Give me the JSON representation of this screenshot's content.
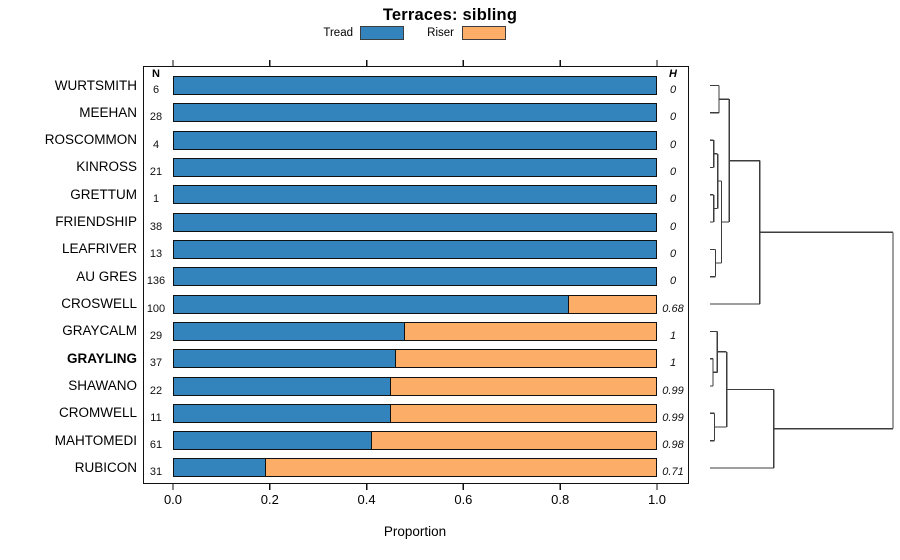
{
  "title": "Terraces: sibling",
  "legend": {
    "items": [
      {
        "label": "Tread",
        "color": "#3384BC"
      },
      {
        "label": "Riser",
        "color": "#FCAE69"
      }
    ]
  },
  "columns": {
    "n_header": "N",
    "h_header": "H"
  },
  "x_axis": {
    "label": "Proportion",
    "tick_labels": [
      "0.0",
      "0.2",
      "0.4",
      "0.6",
      "0.8",
      "1.0"
    ],
    "tick_values": [
      0,
      0.2,
      0.4,
      0.6,
      0.8,
      1.0
    ]
  },
  "colors": {
    "tread": "#3384BC",
    "riser": "#FCAE69",
    "bar_border": "#111111",
    "dendrogram": "#3d3d3d"
  },
  "chart_data": {
    "type": "bar",
    "orientation": "horizontal",
    "stacked": true,
    "xlim": [
      0,
      1
    ],
    "series_names": [
      "Tread",
      "Riser"
    ],
    "rows": [
      {
        "name": "WURTSMITH",
        "n": "6",
        "tread": 1.0,
        "riser": 0.0,
        "h": "0",
        "bold": false
      },
      {
        "name": "MEEHAN",
        "n": "28",
        "tread": 1.0,
        "riser": 0.0,
        "h": "0",
        "bold": false
      },
      {
        "name": "ROSCOMMON",
        "n": "4",
        "tread": 1.0,
        "riser": 0.0,
        "h": "0",
        "bold": false
      },
      {
        "name": "KINROSS",
        "n": "21",
        "tread": 1.0,
        "riser": 0.0,
        "h": "0",
        "bold": false
      },
      {
        "name": "GRETTUM",
        "n": "1",
        "tread": 1.0,
        "riser": 0.0,
        "h": "0",
        "bold": false
      },
      {
        "name": "FRIENDSHIP",
        "n": "38",
        "tread": 1.0,
        "riser": 0.0,
        "h": "0",
        "bold": false
      },
      {
        "name": "LEAFRIVER",
        "n": "13",
        "tread": 1.0,
        "riser": 0.0,
        "h": "0",
        "bold": false
      },
      {
        "name": "AU GRES",
        "n": "136",
        "tread": 1.0,
        "riser": 0.0,
        "h": "0",
        "bold": false
      },
      {
        "name": "CROSWELL",
        "n": "100",
        "tread": 0.82,
        "riser": 0.18,
        "h": "0.68",
        "bold": false
      },
      {
        "name": "GRAYCALM",
        "n": "29",
        "tread": 0.48,
        "riser": 0.52,
        "h": "1",
        "bold": false
      },
      {
        "name": "GRAYLING",
        "n": "37",
        "tread": 0.46,
        "riser": 0.54,
        "h": "1",
        "bold": true
      },
      {
        "name": "SHAWANO",
        "n": "22",
        "tread": 0.45,
        "riser": 0.55,
        "h": "0.99",
        "bold": false
      },
      {
        "name": "CROMWELL",
        "n": "11",
        "tread": 0.45,
        "riser": 0.55,
        "h": "0.99",
        "bold": false
      },
      {
        "name": "MAHTOMEDI",
        "n": "61",
        "tread": 0.41,
        "riser": 0.59,
        "h": "0.98",
        "bold": false
      },
      {
        "name": "RUBICON",
        "n": "31",
        "tread": 0.19,
        "riser": 0.81,
        "h": "0.71",
        "bold": false
      }
    ]
  },
  "dendrogram": {
    "leaf_count": 15,
    "merges": [
      {
        "id": "M0",
        "a": "L0",
        "b": "L1",
        "h": 0.049
      },
      {
        "id": "M1",
        "a": "L2",
        "b": "L3",
        "h": 0.02
      },
      {
        "id": "M2",
        "a": "L4",
        "b": "L5",
        "h": 0.02
      },
      {
        "id": "M3",
        "a": "M1",
        "b": "M2",
        "h": 0.042
      },
      {
        "id": "M4",
        "a": "L6",
        "b": "L7",
        "h": 0.03
      },
      {
        "id": "M5",
        "a": "M3",
        "b": "M4",
        "h": 0.063
      },
      {
        "id": "M6",
        "a": "M0",
        "b": "M5",
        "h": 0.105
      },
      {
        "id": "M7",
        "a": "M6",
        "b": "L8",
        "h": 0.272
      },
      {
        "id": "M8",
        "a": "L10",
        "b": "L11",
        "h": 0.016
      },
      {
        "id": "M9",
        "a": "L9",
        "b": "M8",
        "h": 0.04
      },
      {
        "id": "M10",
        "a": "L12",
        "b": "L13",
        "h": 0.025
      },
      {
        "id": "M11",
        "a": "M9",
        "b": "M10",
        "h": 0.091
      },
      {
        "id": "M12",
        "a": "M11",
        "b": "L14",
        "h": 0.349
      },
      {
        "id": "M13",
        "a": "M7",
        "b": "M12",
        "h": 1.0
      }
    ]
  }
}
